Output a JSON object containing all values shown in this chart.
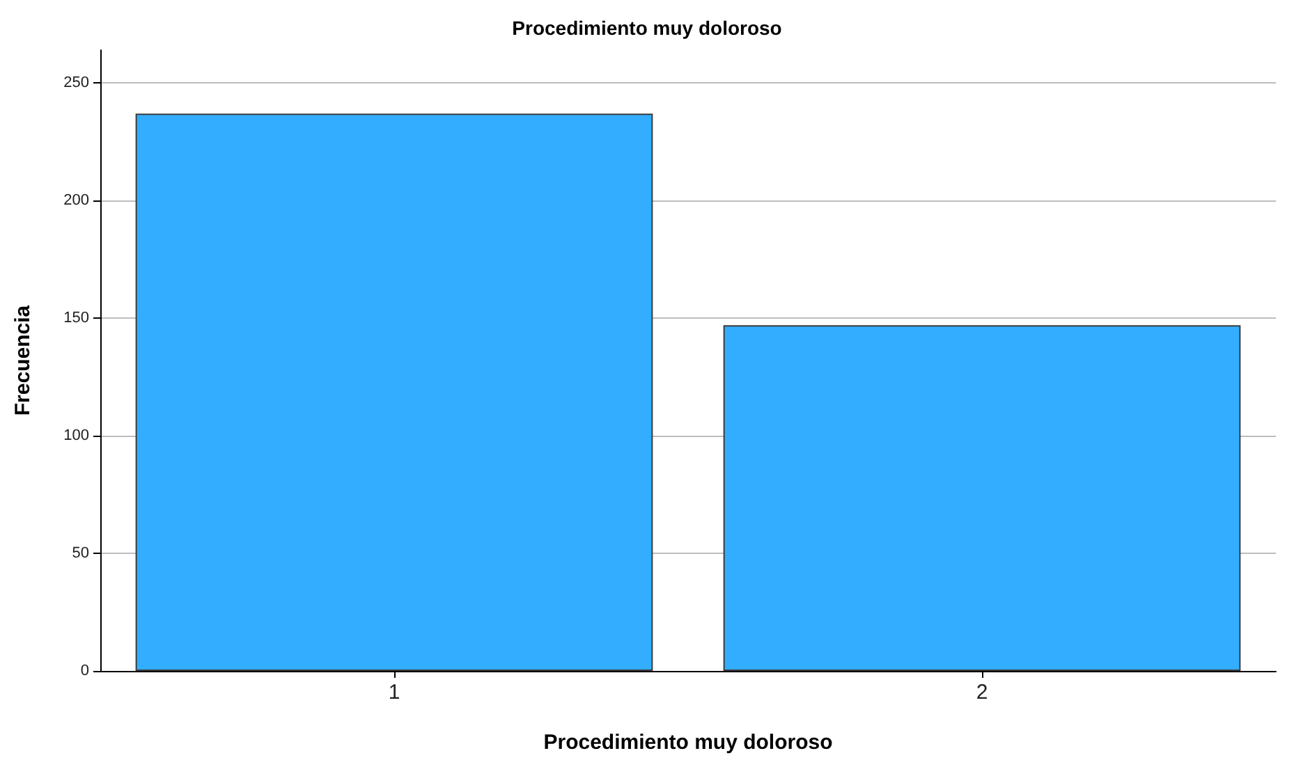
{
  "chart_data": {
    "type": "bar",
    "title": "Procedimiento muy doloroso",
    "xlabel": "Procedimiento muy doloroso",
    "ylabel": "Frecuencia",
    "categories": [
      "1",
      "2"
    ],
    "series": [
      {
        "color": "#33adff",
        "values": [
          237,
          147
        ]
      }
    ],
    "ylim": [
      0,
      264
    ],
    "yticks": [
      0,
      50,
      100,
      150,
      200,
      250
    ],
    "grid": "y"
  }
}
